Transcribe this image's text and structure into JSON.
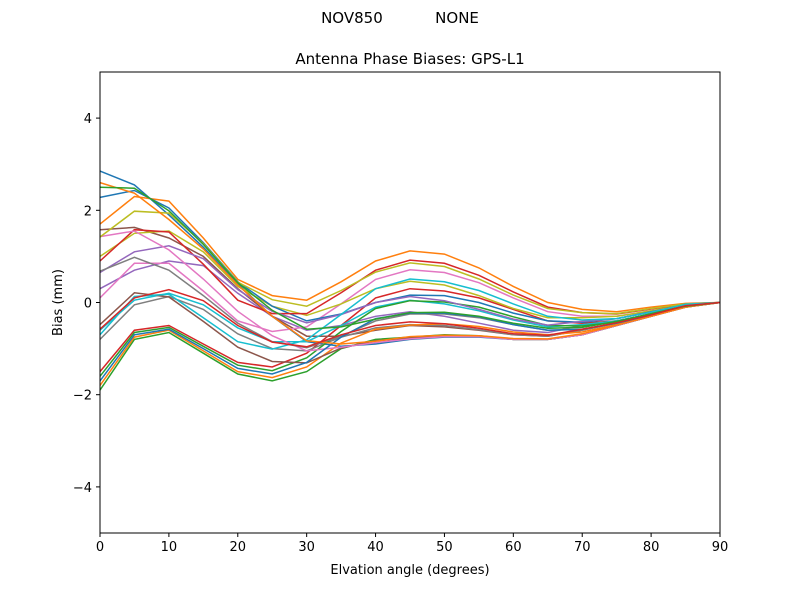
{
  "suptitle": "NOV850           NONE",
  "chart_data": {
    "type": "line",
    "title": "Antenna Phase Biases: GPS-L1",
    "xlabel": "Elvation angle (degrees)",
    "ylabel": "Bias (mm)",
    "xlim": [
      0,
      90
    ],
    "ylim": [
      -5,
      5
    ],
    "xticks": [
      "0",
      "10",
      "20",
      "30",
      "40",
      "50",
      "60",
      "70",
      "80",
      "90"
    ],
    "yticks": [
      "−4",
      "−2",
      "0",
      "2",
      "4"
    ],
    "grid": false,
    "legend": "none",
    "colors": [
      "#1f77b4",
      "#ff7f0e",
      "#2ca02c",
      "#d62728",
      "#9467bd",
      "#8c564b",
      "#e377c2",
      "#7f7f7f",
      "#bcbd22",
      "#17becf"
    ],
    "x": [
      0,
      5,
      10,
      15,
      20,
      25,
      30,
      35,
      40,
      45,
      50,
      55,
      60,
      65,
      70,
      75,
      80,
      85,
      90
    ],
    "series": [
      {
        "values": [
          2.85,
          2.55,
          1.9,
          1.2,
          0.4,
          -0.3,
          -0.85,
          -0.95,
          -0.9,
          -0.8,
          -0.75,
          -0.75,
          -0.8,
          -0.8,
          -0.7,
          -0.5,
          -0.3,
          -0.1,
          0
        ]
      },
      {
        "values": [
          1.7,
          2.3,
          2.2,
          1.4,
          0.5,
          0.15,
          0.05,
          0.45,
          0.9,
          1.12,
          1.05,
          0.75,
          0.35,
          0.0,
          -0.15,
          -0.2,
          -0.1,
          -0.02,
          0
        ]
      },
      {
        "values": [
          -1.9,
          -0.8,
          -0.65,
          -1.1,
          -1.55,
          -1.7,
          -1.5,
          -1.0,
          -0.8,
          -0.75,
          -0.7,
          -0.72,
          -0.8,
          -0.8,
          -0.7,
          -0.5,
          -0.3,
          -0.1,
          0
        ]
      },
      {
        "values": [
          -1.5,
          -0.6,
          -0.5,
          -0.9,
          -1.3,
          -1.4,
          -1.1,
          -0.5,
          0.1,
          0.3,
          0.25,
          0.1,
          -0.15,
          -0.4,
          -0.45,
          -0.4,
          -0.25,
          -0.05,
          0
        ]
      },
      {
        "values": [
          0.3,
          0.7,
          0.9,
          0.8,
          0.2,
          -0.3,
          -0.6,
          -0.5,
          -0.3,
          -0.2,
          -0.3,
          -0.45,
          -0.6,
          -0.65,
          -0.5,
          -0.4,
          -0.25,
          -0.05,
          0
        ]
      },
      {
        "values": [
          1.58,
          1.63,
          1.4,
          1.0,
          0.3,
          -0.3,
          -0.73,
          -0.73,
          -0.6,
          -0.5,
          -0.53,
          -0.6,
          -0.7,
          -0.73,
          -0.6,
          -0.45,
          -0.28,
          -0.08,
          0
        ]
      },
      {
        "values": [
          0.1,
          0.85,
          0.85,
          0.25,
          -0.4,
          -0.63,
          -0.53,
          -0.03,
          0.5,
          0.71,
          0.65,
          0.43,
          0.1,
          -0.2,
          -0.3,
          -0.3,
          -0.18,
          -0.04,
          0
        ]
      },
      {
        "values": [
          -0.8,
          -0.05,
          0.13,
          -0.15,
          -0.68,
          -1.0,
          -1.05,
          -0.75,
          -0.55,
          -0.48,
          -0.5,
          -0.59,
          -0.7,
          -0.73,
          -0.6,
          -0.45,
          -0.28,
          -0.08,
          0
        ]
      },
      {
        "values": [
          1.0,
          1.5,
          1.55,
          1.1,
          0.35,
          -0.08,
          -0.28,
          -0.03,
          0.3,
          0.46,
          0.38,
          0.15,
          -0.13,
          -0.33,
          -0.33,
          -0.3,
          -0.18,
          -0.04,
          0
        ]
      },
      {
        "values": [
          -0.6,
          0.05,
          0.2,
          -0.05,
          -0.55,
          -0.85,
          -0.85,
          -0.5,
          -0.1,
          0.05,
          -0.03,
          -0.18,
          -0.38,
          -0.53,
          -0.48,
          -0.4,
          -0.25,
          -0.05,
          0
        ]
      },
      {
        "values": [
          2.28,
          2.43,
          2.05,
          1.3,
          0.45,
          -0.08,
          -0.4,
          -0.25,
          0,
          0.16,
          0.15,
          0,
          -0.23,
          -0.4,
          -0.43,
          -0.35,
          -0.2,
          -0.06,
          0
        ]
      },
      {
        "values": [
          -1.8,
          -0.75,
          -0.6,
          -1.05,
          -1.5,
          -1.63,
          -1.4,
          -0.88,
          -0.58,
          -0.49,
          -0.46,
          -0.52,
          -0.64,
          -0.7,
          -0.64,
          -0.48,
          -0.29,
          -0.09,
          0
        ]
      },
      {
        "values": [
          -1.6,
          -0.65,
          -0.54,
          -0.95,
          -1.36,
          -1.48,
          -1.2,
          -0.63,
          -0.13,
          0.04,
          0.01,
          -0.1,
          -0.31,
          -0.5,
          -0.51,
          -0.43,
          -0.26,
          -0.06,
          0
        ]
      },
      {
        "values": [
          0.9,
          1.58,
          1.53,
          0.83,
          0.05,
          -0.24,
          -0.24,
          0.21,
          0.7,
          0.92,
          0.85,
          0.59,
          0.23,
          -0.1,
          -0.22,
          -0.25,
          -0.14,
          -0.03,
          0
        ]
      },
      {
        "values": [
          0.65,
          1.1,
          1.23,
          0.95,
          0.28,
          -0.19,
          -0.44,
          -0.26,
          0.0,
          0.13,
          0.04,
          -0.15,
          -0.36,
          -0.49,
          -0.41,
          -0.35,
          -0.21,
          -0.04,
          0
        ]
      },
      {
        "values": [
          -0.48,
          0.21,
          0.12,
          -0.41,
          -0.97,
          -1.28,
          -1.31,
          -0.99,
          -0.83,
          -0.77,
          -0.72,
          -0.73,
          -0.8,
          -0.8,
          -0.7,
          -0.5,
          -0.3,
          -0.1,
          0
        ]
      },
      {
        "values": [
          1.43,
          1.55,
          1.14,
          0.51,
          -0.19,
          -0.72,
          -1.05,
          -0.97,
          -0.87,
          -0.79,
          -0.74,
          -0.74,
          -0.8,
          -0.8,
          -0.7,
          -0.5,
          -0.3,
          -0.1,
          0
        ]
      },
      {
        "values": [
          0.68,
          0.98,
          0.7,
          0.15,
          -0.45,
          -0.85,
          -0.98,
          -0.73,
          -0.4,
          -0.25,
          -0.25,
          -0.33,
          -0.48,
          -0.6,
          -0.58,
          -0.45,
          -0.28,
          -0.08,
          0
        ]
      },
      {
        "values": [
          1.42,
          1.98,
          1.94,
          1.28,
          0.44,
          0.06,
          -0.08,
          0.26,
          0.66,
          0.86,
          0.78,
          0.51,
          0.16,
          -0.13,
          -0.22,
          -0.24,
          -0.13,
          -0.03,
          0
        ]
      },
      {
        "values": [
          -0.7,
          0.13,
          0.18,
          -0.33,
          -0.85,
          -1.01,
          -0.81,
          -0.26,
          0.3,
          0.51,
          0.45,
          0.26,
          -0.03,
          -0.3,
          -0.38,
          -0.35,
          -0.21,
          -0.04,
          0
        ]
      },
      {
        "values": [
          -1.7,
          -0.7,
          -0.58,
          -1.0,
          -1.43,
          -1.55,
          -1.3,
          -0.75,
          -0.35,
          -0.23,
          -0.23,
          -0.31,
          -0.48,
          -0.6,
          -0.58,
          -0.45,
          -0.28,
          -0.08,
          0
        ]
      },
      {
        "values": [
          2.6,
          2.37,
          1.8,
          1.16,
          0.38,
          -0.3,
          -0.83,
          -0.9,
          -0.84,
          -0.74,
          -0.71,
          -0.72,
          -0.78,
          -0.79,
          -0.68,
          -0.49,
          -0.3,
          -0.1,
          0
        ]
      },
      {
        "values": [
          2.5,
          2.48,
          1.99,
          1.26,
          0.43,
          -0.17,
          -0.58,
          -0.53,
          -0.36,
          -0.22,
          -0.21,
          -0.3,
          -0.45,
          -0.56,
          -0.54,
          -0.41,
          -0.24,
          -0.08,
          0
        ]
      },
      {
        "values": [
          -0.58,
          0.1,
          0.28,
          0.04,
          -0.5,
          -0.86,
          -0.96,
          -0.7,
          -0.5,
          -0.42,
          -0.46,
          -0.56,
          -0.68,
          -0.71,
          -0.58,
          -0.44,
          -0.27,
          -0.07,
          0
        ]
      }
    ]
  }
}
